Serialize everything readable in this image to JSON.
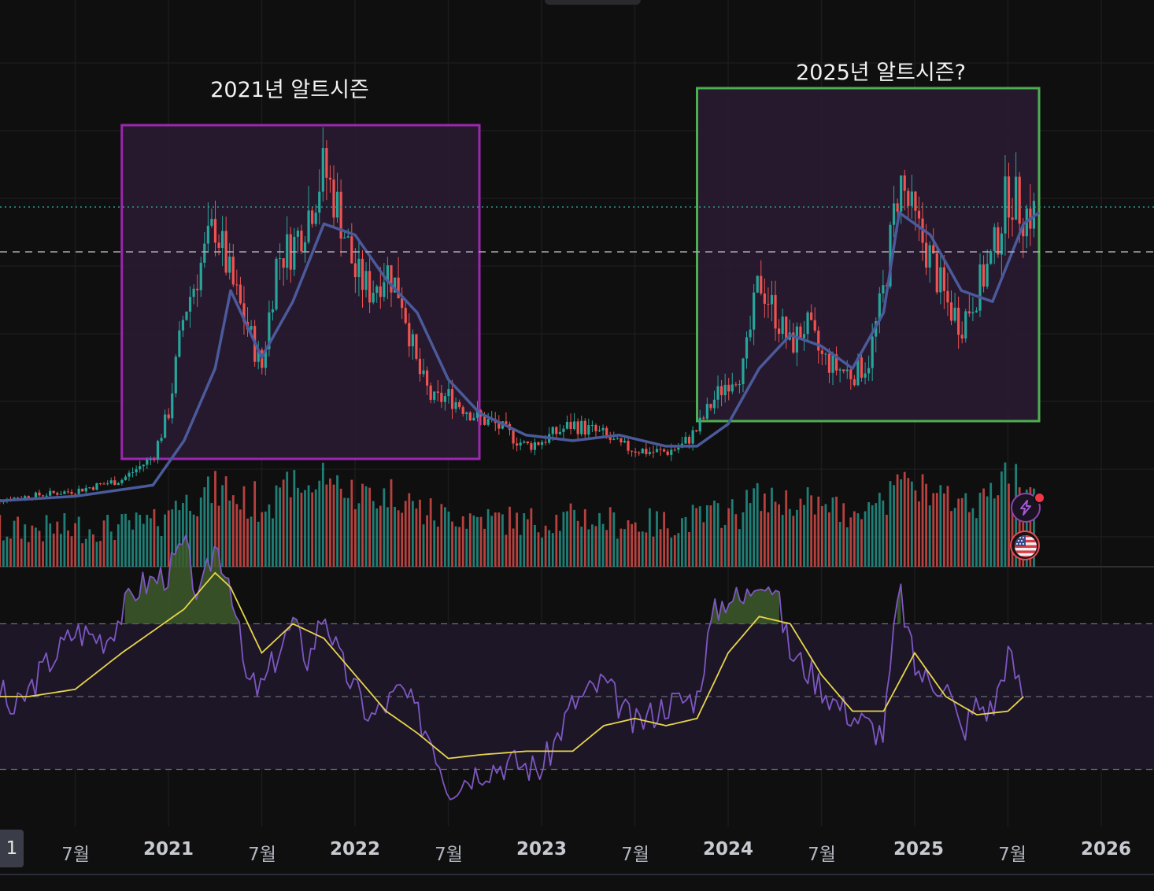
{
  "annotations": {
    "box_2021_label": "2021년 알트시즌",
    "box_2025_label": "2025년 알트시즌?"
  },
  "xaxis": {
    "partial_label": "1",
    "labels": [
      {
        "text": "7월",
        "kind": "month"
      },
      {
        "text": "2021",
        "kind": "year"
      },
      {
        "text": "7월",
        "kind": "month"
      },
      {
        "text": "2022",
        "kind": "year"
      },
      {
        "text": "7월",
        "kind": "month"
      },
      {
        "text": "2023",
        "kind": "year"
      },
      {
        "text": "7월",
        "kind": "month"
      },
      {
        "text": "2024",
        "kind": "year"
      },
      {
        "text": "7월",
        "kind": "month"
      },
      {
        "text": "2025",
        "kind": "year"
      },
      {
        "text": "7월",
        "kind": "month"
      },
      {
        "text": "2026",
        "kind": "year"
      }
    ]
  },
  "icons": {
    "events": "lightning-icon",
    "economic_calendar": "us-flag-icon"
  },
  "colors": {
    "background": "#0f0f0f",
    "candle_up": "#26a69a",
    "candle_down": "#ef5350",
    "moving_average": "#4a5a9a",
    "box_2021_border": "#9c27b0",
    "box_2025_border": "#4caf50",
    "box_fill": "#2a1a33",
    "rsi_line": "#7e57c2",
    "rsi_ma_line": "#e8d44d",
    "rsi_band_fill": "#1c1626",
    "overbought_fill": "#3d5a2a"
  },
  "chart_data": [
    {
      "type": "candlestick",
      "title": "",
      "x_unit": "week",
      "x_range": [
        "2020-01",
        "2026-02"
      ],
      "xlabel": "",
      "ylabel": "",
      "price_lines": [
        "dotted (current)",
        "dashed"
      ],
      "highlight_regions": [
        {
          "label": "2021년 알트시즌",
          "from": "2020-10",
          "to": "2022-09",
          "color": "#9c27b0"
        },
        {
          "label": "2025년 알트시즌?",
          "from": "2023-11",
          "to": "2025-09",
          "color": "#4caf50"
        }
      ],
      "series": [
        {
          "name": "",
          "kind": "close",
          "x": [
            "2020-01",
            "2020-04",
            "2020-07",
            "2020-10",
            "2020-12",
            "2021-01",
            "2021-02",
            "2021-03",
            "2021-04",
            "2021-05",
            "2021-06",
            "2021-07",
            "2021-08",
            "2021-09",
            "2021-10",
            "2021-11",
            "2021-12",
            "2022-01",
            "2022-02",
            "2022-03",
            "2022-04",
            "2022-05",
            "2022-06",
            "2022-07",
            "2022-08",
            "2022-09",
            "2022-10",
            "2022-11",
            "2022-12",
            "2023-01",
            "2023-03",
            "2023-05",
            "2023-06",
            "2023-08",
            "2023-09",
            "2023-10",
            "2023-11",
            "2023-12",
            "2024-01",
            "2024-02",
            "2024-03",
            "2024-04",
            "2024-05",
            "2024-06",
            "2024-07",
            "2024-08",
            "2024-09",
            "2024-10",
            "2024-11",
            "2024-12",
            "2025-01",
            "2025-02",
            "2025-03",
            "2025-04",
            "2025-05",
            "2025-06",
            "2025-07",
            "2025-08"
          ],
          "values": [
            6,
            7,
            8,
            10,
            14,
            22,
            40,
            48,
            56,
            46,
            38,
            30,
            50,
            52,
            58,
            66,
            58,
            47,
            44,
            48,
            43,
            30,
            24,
            25,
            23,
            21,
            20,
            18,
            16,
            17,
            20,
            18,
            16,
            15,
            15,
            16,
            19,
            24,
            28,
            30,
            46,
            40,
            34,
            38,
            32,
            30,
            29,
            31,
            44,
            64,
            56,
            50,
            42,
            38,
            44,
            50,
            62,
            58
          ]
        },
        {
          "name": "",
          "kind": "moving_average",
          "x": [
            "2020-01",
            "2020-07",
            "2020-12",
            "2021-02",
            "2021-04",
            "2021-05",
            "2021-07",
            "2021-09",
            "2021-11",
            "2022-01",
            "2022-03",
            "2022-05",
            "2022-07",
            "2022-09",
            "2022-12",
            "2023-03",
            "2023-06",
            "2023-09",
            "2023-11",
            "2024-01",
            "2024-03",
            "2024-05",
            "2024-07",
            "2024-09",
            "2024-11",
            "2024-12",
            "2025-02",
            "2025-04",
            "2025-06",
            "2025-08",
            "2025-09"
          ],
          "values": [
            6,
            7,
            9,
            17,
            30,
            44,
            32,
            42,
            56,
            54,
            46,
            40,
            28,
            22,
            18,
            17,
            18,
            16,
            16,
            20,
            30,
            36,
            34,
            30,
            40,
            58,
            54,
            44,
            42,
            56,
            58
          ]
        }
      ],
      "volume": "histogram (up/down colored)"
    },
    {
      "type": "line",
      "title": "",
      "ylim": [
        10,
        90
      ],
      "bands": [
        30,
        50,
        70
      ],
      "series": [
        {
          "name": "",
          "kind": "rsi",
          "x": [
            "2020-01",
            "2020-03",
            "2020-05",
            "2020-07",
            "2020-09",
            "2020-11",
            "2021-01",
            "2021-02",
            "2021-03",
            "2021-04",
            "2021-05",
            "2021-06",
            "2021-07",
            "2021-08",
            "2021-09",
            "2021-10",
            "2021-11",
            "2021-12",
            "2022-02",
            "2022-04",
            "2022-06",
            "2022-07",
            "2022-09",
            "2022-11",
            "2023-01",
            "2023-03",
            "2023-05",
            "2023-07",
            "2023-09",
            "2023-11",
            "2023-12",
            "2024-01",
            "2024-02",
            "2024-03",
            "2024-04",
            "2024-05",
            "2024-06",
            "2024-08",
            "2024-10",
            "2024-11",
            "2024-12",
            "2025-01",
            "2025-02",
            "2025-03",
            "2025-04",
            "2025-05",
            "2025-06",
            "2025-07",
            "2025-08"
          ],
          "values": [
            62,
            45,
            58,
            68,
            66,
            80,
            84,
            92,
            76,
            92,
            82,
            54,
            52,
            62,
            70,
            60,
            74,
            60,
            44,
            52,
            38,
            25,
            30,
            32,
            30,
            48,
            54,
            42,
            48,
            50,
            72,
            78,
            76,
            84,
            80,
            62,
            58,
            48,
            42,
            40,
            80,
            58,
            54,
            54,
            40,
            48,
            46,
            62,
            50
          ]
        },
        {
          "name": "",
          "kind": "rsi_ma",
          "x": [
            "2020-01",
            "2020-04",
            "2020-07",
            "2020-10",
            "2020-12",
            "2021-02",
            "2021-04",
            "2021-05",
            "2021-07",
            "2021-09",
            "2021-11",
            "2022-01",
            "2022-03",
            "2022-05",
            "2022-07",
            "2022-09",
            "2022-12",
            "2023-03",
            "2023-05",
            "2023-07",
            "2023-09",
            "2023-11",
            "2024-01",
            "2024-03",
            "2024-05",
            "2024-07",
            "2024-09",
            "2024-11",
            "2024-12",
            "2025-01",
            "2025-03",
            "2025-05",
            "2025-07",
            "2025-08"
          ],
          "values": [
            50,
            50,
            52,
            62,
            68,
            74,
            84,
            80,
            62,
            70,
            66,
            56,
            46,
            40,
            33,
            34,
            35,
            35,
            42,
            44,
            42,
            44,
            62,
            72,
            70,
            56,
            46,
            46,
            54,
            62,
            50,
            45,
            46,
            50
          ]
        }
      ]
    }
  ]
}
